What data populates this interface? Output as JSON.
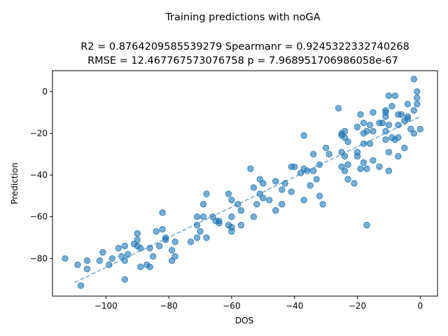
{
  "chart_data": {
    "type": "scatter",
    "title": "Training predictions with noGA",
    "subtitle_line1": "R2 = 0.8764209585539279 Spearmanr = 0.9245322332740268",
    "subtitle_line2": "RMSE = 12.467767573076758 p = 7.968951706986058e-67",
    "xlabel": "DOS",
    "ylabel": "Prediction",
    "xlim": [
      -117,
      5.5
    ],
    "ylim": [
      -98,
      10
    ],
    "xticks": [
      -100,
      -80,
      -60,
      -40,
      -20,
      0
    ],
    "yticks": [
      -80,
      -60,
      -40,
      -20,
      0
    ],
    "xtick_labels": [
      "−100",
      "−80",
      "−60",
      "−40",
      "−20",
      "0"
    ],
    "ytick_labels": [
      "−80",
      "−60",
      "−40",
      "−20",
      "0"
    ],
    "grid": false,
    "point_color": "#1f77b4",
    "trend_line": {
      "x": [
        -110,
        0
      ],
      "y": [
        -91.5,
        -12
      ]
    },
    "points": [
      [
        -113,
        -80
      ],
      [
        -109,
        -83
      ],
      [
        -108,
        -93
      ],
      [
        -106,
        -85
      ],
      [
        -106,
        -81
      ],
      [
        -102,
        -81
      ],
      [
        -101,
        -77
      ],
      [
        -99,
        -83
      ],
      [
        -98,
        -80
      ],
      [
        -96,
        -75
      ],
      [
        -95,
        -79
      ],
      [
        -94,
        -81
      ],
      [
        -94,
        -90
      ],
      [
        -94,
        -74
      ],
      [
        -93,
        -78
      ],
      [
        -91,
        -73
      ],
      [
        -90,
        -71
      ],
      [
        -90,
        -74
      ],
      [
        -90,
        -68
      ],
      [
        -89,
        -84
      ],
      [
        -89,
        -75
      ],
      [
        -87,
        -83
      ],
      [
        -86,
        -84
      ],
      [
        -86,
        -75
      ],
      [
        -85,
        -79
      ],
      [
        -84,
        -67
      ],
      [
        -83,
        -74
      ],
      [
        -82,
        -58
      ],
      [
        -82,
        -66
      ],
      [
        -81,
        -70
      ],
      [
        -81,
        -71
      ],
      [
        -79,
        -76
      ],
      [
        -79,
        -81
      ],
      [
        -78,
        -72
      ],
      [
        -78,
        -79
      ],
      [
        -73,
        -72
      ],
      [
        -71,
        -60
      ],
      [
        -71,
        -70
      ],
      [
        -71,
        -64
      ],
      [
        -70,
        -67
      ],
      [
        -69,
        -54
      ],
      [
        -69,
        -60
      ],
      [
        -68,
        -70
      ],
      [
        -68,
        -49
      ],
      [
        -66,
        -60
      ],
      [
        -65,
        -62
      ],
      [
        -64,
        -62
      ],
      [
        -64,
        -63
      ],
      [
        -61,
        -49
      ],
      [
        -61,
        -64
      ],
      [
        -60,
        -52
      ],
      [
        -60,
        -60
      ],
      [
        -60,
        -67
      ],
      [
        -60,
        -65
      ],
      [
        -58,
        -54
      ],
      [
        -57,
        -57
      ],
      [
        -57,
        -64
      ],
      [
        -54,
        -37
      ],
      [
        -53,
        -60
      ],
      [
        -53,
        -46
      ],
      [
        -52,
        -54
      ],
      [
        -51,
        -42
      ],
      [
        -51,
        -49
      ],
      [
        -50,
        -44
      ],
      [
        -50,
        -51
      ],
      [
        -48,
        -52
      ],
      [
        -46,
        -43
      ],
      [
        -46,
        -57
      ],
      [
        -44,
        -47
      ],
      [
        -44,
        -54
      ],
      [
        -43,
        -44
      ],
      [
        -41,
        -36
      ],
      [
        -41,
        -48
      ],
      [
        -40,
        -36
      ],
      [
        -38,
        -39
      ],
      [
        -37,
        -52
      ],
      [
        -37,
        -37
      ],
      [
        -37,
        -21
      ],
      [
        -36,
        -38
      ],
      [
        -35,
        -45
      ],
      [
        -34,
        -30
      ],
      [
        -34,
        -38
      ],
      [
        -33,
        -42
      ],
      [
        -32,
        -35
      ],
      [
        -32,
        -50
      ],
      [
        -31,
        -54
      ],
      [
        -30,
        -27
      ],
      [
        -29,
        -30
      ],
      [
        -26,
        -8
      ],
      [
        -25,
        -21
      ],
      [
        -25,
        -20
      ],
      [
        -25,
        -29
      ],
      [
        -25,
        -36
      ],
      [
        -24,
        -38
      ],
      [
        -24,
        -31
      ],
      [
        -24,
        -22
      ],
      [
        -24,
        -19
      ],
      [
        -23,
        -24
      ],
      [
        -23,
        -35
      ],
      [
        -23,
        -42
      ],
      [
        -21,
        -44
      ],
      [
        -20,
        -31
      ],
      [
        -20,
        -17
      ],
      [
        -20,
        -29
      ],
      [
        -19,
        -11
      ],
      [
        -19,
        -37
      ],
      [
        -18,
        -25
      ],
      [
        -18,
        -15
      ],
      [
        -18,
        -34
      ],
      [
        -18,
        -20
      ],
      [
        -17,
        -64
      ],
      [
        -17,
        -37
      ],
      [
        -17,
        -19
      ],
      [
        -16,
        -16
      ],
      [
        -16,
        -25
      ],
      [
        -15,
        -19
      ],
      [
        -15,
        -10
      ],
      [
        -15,
        -33
      ],
      [
        -13,
        -15
      ],
      [
        -13,
        -36
      ],
      [
        -12,
        -15
      ],
      [
        -11,
        -19
      ],
      [
        -11,
        -23
      ],
      [
        -11,
        -9
      ],
      [
        -11,
        -12
      ],
      [
        -11,
        -10
      ],
      [
        -10,
        -2
      ],
      [
        -10,
        -16
      ],
      [
        -10,
        -29
      ],
      [
        -10,
        -38
      ],
      [
        -9,
        -22
      ],
      [
        -9,
        -7
      ],
      [
        -8,
        -2
      ],
      [
        -8,
        -23
      ],
      [
        -7,
        -11
      ],
      [
        -7,
        -16
      ],
      [
        -7,
        -31
      ],
      [
        -7,
        -22
      ],
      [
        -6,
        -11
      ],
      [
        -5,
        -14
      ],
      [
        -5,
        -27
      ],
      [
        -4,
        -12
      ],
      [
        -4,
        -6
      ],
      [
        -4,
        -13
      ],
      [
        -3,
        -18
      ],
      [
        -2,
        -20
      ],
      [
        -2,
        6
      ],
      [
        -2,
        -9
      ],
      [
        -1,
        0
      ],
      [
        -1,
        -3
      ],
      [
        -1,
        -6
      ],
      [
        0,
        -18
      ]
    ]
  }
}
